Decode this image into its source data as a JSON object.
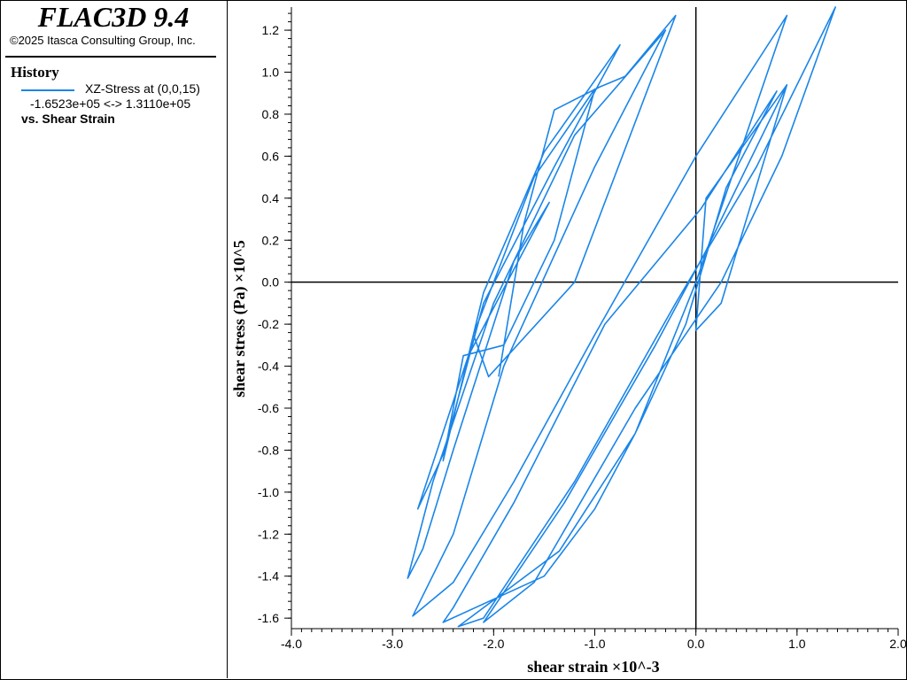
{
  "header": {
    "app_title": "FLAC3D 9.4",
    "copyright": "©2025 Itasca Consulting Group, Inc."
  },
  "legend": {
    "heading": "History",
    "series_label": "XZ-Stress at (0,0,15)",
    "range_text": "-1.6523e+05 <->  1.3110e+05",
    "vs_label": "vs. Shear Strain",
    "line_color": "#1a85e8"
  },
  "chart_data": {
    "type": "line",
    "xlabel": "shear strain ×10^-3",
    "ylabel": "shear stress (Pa) ×10^5",
    "xlim": [
      -4.0,
      2.0
    ],
    "ylim": [
      -1.65,
      1.31
    ],
    "x_ticks": [
      "-4.0",
      "-3.0",
      "-2.0",
      "-1.0",
      "0.0",
      "1.0",
      "2.0"
    ],
    "y_ticks": [
      "-1.6",
      "-1.4",
      "-1.2",
      "-1.0",
      "-0.8",
      "-0.6",
      "-0.4",
      "-0.2",
      "0.0",
      "0.2",
      "0.4",
      "0.6",
      "0.8",
      "1.0",
      "1.2"
    ],
    "grid": false,
    "zero_axes": true,
    "series": [
      {
        "name": "XZ-Stress at (0,0,15)",
        "color": "#1a85e8",
        "points": [
          [
            -1.95,
            -0.45
          ],
          [
            -1.7,
            0.28
          ],
          [
            -1.4,
            0.82
          ],
          [
            -0.95,
            0.93
          ],
          [
            -0.7,
            0.98
          ],
          [
            -0.2,
            1.27
          ],
          [
            -1.2,
            0.0
          ],
          [
            -2.05,
            -0.45
          ],
          [
            -2.2,
            -0.25
          ],
          [
            -1.6,
            0.5
          ],
          [
            -1.0,
            0.92
          ],
          [
            -1.4,
            0.2
          ],
          [
            -1.9,
            -0.3
          ],
          [
            -2.3,
            -0.35
          ],
          [
            -2.5,
            -0.85
          ],
          [
            -2.1,
            -0.05
          ],
          [
            -1.5,
            0.62
          ],
          [
            -0.75,
            1.13
          ],
          [
            -1.4,
            0.55
          ],
          [
            -2.1,
            -0.1
          ],
          [
            -2.5,
            -0.82
          ],
          [
            -2.75,
            -1.08
          ],
          [
            -2.25,
            -0.35
          ],
          [
            -1.45,
            0.38
          ],
          [
            -1.8,
            0.1
          ],
          [
            -2.4,
            -0.8
          ],
          [
            -2.7,
            -1.27
          ],
          [
            -2.85,
            -1.41
          ],
          [
            -2.6,
            -0.95
          ],
          [
            -2.0,
            -0.1
          ],
          [
            -1.2,
            0.7
          ],
          [
            -0.3,
            1.2
          ],
          [
            -1.0,
            0.55
          ],
          [
            -1.9,
            -0.4
          ],
          [
            -2.4,
            -1.2
          ],
          [
            -2.8,
            -1.59
          ],
          [
            -2.4,
            -1.43
          ],
          [
            -1.8,
            -0.95
          ],
          [
            -1.0,
            -0.25
          ],
          [
            0.0,
            0.6
          ],
          [
            0.9,
            1.27
          ],
          [
            0.0,
            0.0
          ],
          [
            -0.6,
            -0.72
          ],
          [
            -1.0,
            -1.08
          ],
          [
            -1.5,
            -1.4
          ],
          [
            -2.5,
            -1.62
          ],
          [
            -2.4,
            -1.55
          ],
          [
            -1.8,
            -1.05
          ],
          [
            -0.9,
            -0.2
          ],
          [
            0.05,
            0.35
          ],
          [
            0.8,
            0.91
          ],
          [
            0.3,
            0.45
          ],
          [
            -0.1,
            -0.2
          ],
          [
            -0.6,
            -0.72
          ],
          [
            -1.35,
            -1.28
          ],
          [
            -2.35,
            -1.64
          ],
          [
            -2.1,
            -1.6
          ],
          [
            -1.2,
            -0.95
          ],
          [
            -0.2,
            -0.1
          ],
          [
            0.6,
            0.55
          ],
          [
            1.38,
            1.31
          ],
          [
            0.85,
            0.6
          ],
          [
            0.25,
            0.0
          ],
          [
            -0.6,
            -0.6
          ],
          [
            -1.6,
            -1.43
          ],
          [
            -2.1,
            -1.62
          ],
          [
            -1.3,
            -1.05
          ],
          [
            -0.4,
            -0.3
          ],
          [
            0.1,
            0.15
          ],
          [
            0.9,
            0.94
          ],
          [
            0.25,
            -0.1
          ],
          [
            0.0,
            -0.23
          ],
          [
            0.1,
            0.4
          ],
          [
            0.9,
            0.94
          ]
        ]
      }
    ]
  }
}
